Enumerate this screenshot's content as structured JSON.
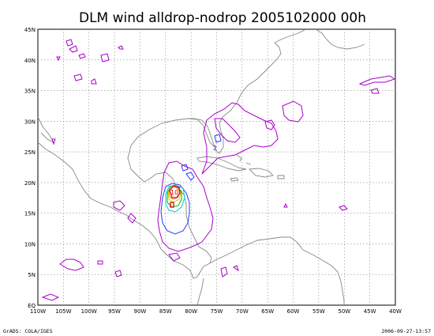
{
  "title": "DLM wind alldrop-nodrop 2005102000 00h",
  "footer_left": "GrADS: COLA/IGES",
  "footer_right": "2006-09-27-13:57",
  "lon_labels": [
    "110W",
    "105W",
    "100W",
    "95W",
    "90W",
    "85W",
    "80W",
    "75W",
    "70W",
    "65W",
    "60W",
    "55W",
    "50W",
    "45W",
    "40W"
  ],
  "lat_labels": [
    "EQ",
    "5N",
    "10N",
    "15N",
    "20N",
    "25N",
    "30N",
    "35N",
    "40N",
    "45N"
  ],
  "contour_labels": {
    "center_value": "10",
    "minor_value": "2"
  },
  "colors": {
    "coastline": "#888888",
    "contour_magenta": "#aa00cc",
    "contour_blue": "#1e3cff",
    "contour_cyan": "#00c8c8",
    "contour_green": "#00b400",
    "contour_yellow": "#d2d200",
    "contour_orange": "#ff8c00",
    "contour_red": "#e10000"
  }
}
